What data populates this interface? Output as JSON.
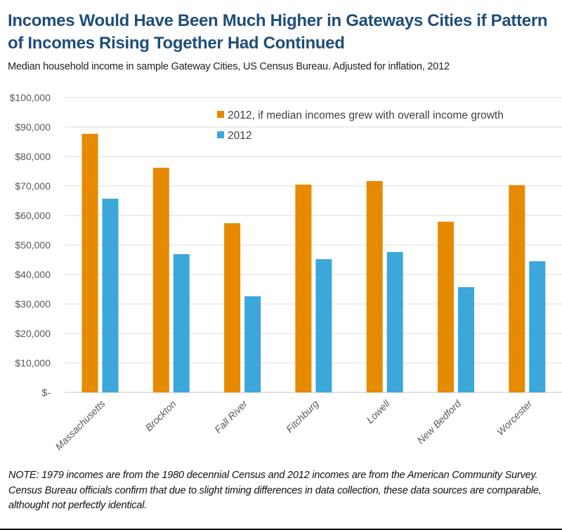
{
  "header": {
    "title": "Incomes Would Have Been Much Higher in Gateways Cities if Pattern of Incomes Rising Together Had Continued",
    "subtitle": "Median household income in sample Gateway Cities, US Census Bureau. Adjusted for inflation, 2012"
  },
  "chart_data": {
    "type": "bar",
    "title": "Incomes Would Have Been Much Higher in Gateways Cities if Pattern of Incomes Rising Together Had Continued",
    "subtitle": "Median household income in sample Gateway Cities, US Census Bureau. Adjusted for inflation, 2012",
    "xlabel": "",
    "ylabel": "",
    "categories": [
      "Massachusetts",
      "Brockton",
      "Fall River",
      "Fitchburg",
      "Lowell",
      "New Bedford",
      "Worcester"
    ],
    "series": [
      {
        "name": "2012, if median incomes grew with overall income growth",
        "color": "#E68A00",
        "values": [
          87700,
          76200,
          57400,
          70500,
          71700,
          57900,
          70300
        ]
      },
      {
        "name": "2012",
        "color": "#3BA7DB",
        "values": [
          65700,
          46900,
          32600,
          45200,
          47600,
          35700,
          44500
        ]
      }
    ],
    "ylim": [
      0,
      100000
    ],
    "yticks": [
      0,
      10000,
      20000,
      30000,
      40000,
      50000,
      60000,
      70000,
      80000,
      90000,
      100000
    ],
    "ytick_labels": [
      "$-",
      "$10,000",
      "$20,000",
      "$30,000",
      "$40,000",
      "$50,000",
      "$60,000",
      "$70,000",
      "$80,000",
      "$90,000",
      "$100,000"
    ],
    "grid": true,
    "legend": "top-right"
  },
  "note": "NOTE: 1979 incomes are from the 1980 decennial Census and 2012 incomes are from the American Community Survey. Census Bureau officials confirm that due to slight timing differences in data collection, these data sources are comparable, althought  not perfectly identical."
}
